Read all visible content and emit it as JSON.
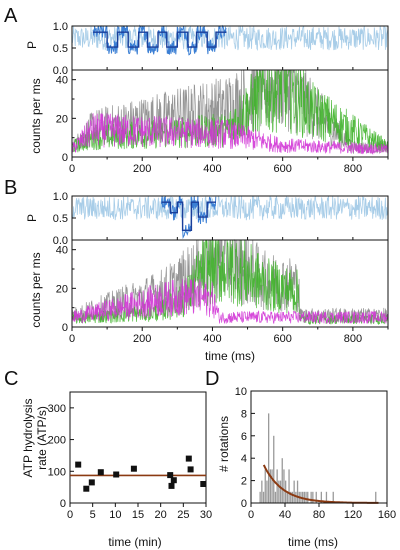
{
  "panels": {
    "A": {
      "letter": "A"
    },
    "B": {
      "letter": "B"
    },
    "C": {
      "letter": "C"
    },
    "D": {
      "letter": "D"
    }
  },
  "colors": {
    "fret_light": "#a8cde8",
    "fret_dark": "#1a3f9a",
    "fret_mid": "#3b7fd4",
    "green": "#3fb22a",
    "magenta": "#d236d6",
    "gray": "#8a8a8a",
    "fit": "#8b3a12",
    "hist": "#9a9a9a"
  },
  "chart_data": [
    {
      "id": "A_top",
      "type": "line",
      "panel": "A",
      "ylabel": "P",
      "xlim": [
        0,
        900
      ],
      "ylim": [
        0,
        1.0
      ],
      "y_ticks": [
        0.0,
        0.5,
        1.0
      ],
      "y_tick_labels": [
        "0.0",
        "0.5",
        "1.0"
      ],
      "series": [
        {
          "role": "raw",
          "x_range": [
            0,
            900
          ],
          "level_range": [
            0.4,
            1.0
          ]
        },
        {
          "role": "burst",
          "x_range": [
            60,
            440
          ]
        },
        {
          "role": "step-fit",
          "levels": [
            [
              60,
              0.86
            ],
            [
              100,
              0.52
            ],
            [
              130,
              0.86
            ],
            [
              160,
              0.52
            ],
            [
              190,
              0.86
            ],
            [
              215,
              0.52
            ],
            [
              245,
              0.86
            ],
            [
              270,
              0.52
            ],
            [
              300,
              0.86
            ],
            [
              330,
              0.52
            ],
            [
              355,
              0.86
            ],
            [
              385,
              0.52
            ],
            [
              410,
              0.86
            ],
            [
              440,
              0.86
            ]
          ]
        }
      ]
    },
    {
      "id": "A_bottom",
      "type": "line",
      "panel": "A",
      "ylabel": "counts per ms",
      "xlim": [
        0,
        900
      ],
      "ylim": [
        0,
        45
      ],
      "y_ticks": [
        0,
        20,
        40
      ],
      "x_ticks": [
        0,
        200,
        400,
        600,
        800
      ],
      "series": [
        {
          "role": "sum",
          "segments": [
            [
              0,
              5
            ],
            [
              60,
              15
            ],
            [
              440,
              26
            ],
            [
              600,
              40
            ],
            [
              700,
              22
            ],
            [
              800,
              5
            ],
            [
              900,
              5
            ]
          ]
        },
        {
          "role": "acceptor",
          "segments": [
            [
              0,
              5
            ],
            [
              60,
              10
            ],
            [
              440,
              14
            ],
            [
              530,
              30
            ],
            [
              600,
              38
            ],
            [
              680,
              24
            ],
            [
              900,
              5
            ]
          ]
        },
        {
          "role": "donor",
          "segments": [
            [
              0,
              4
            ],
            [
              60,
              14
            ],
            [
              440,
              12
            ],
            [
              600,
              6
            ],
            [
              900,
              4
            ]
          ]
        }
      ]
    },
    {
      "id": "B_top",
      "type": "line",
      "panel": "B",
      "ylabel": "P",
      "xlim": [
        0,
        900
      ],
      "ylim": [
        0,
        1.0
      ],
      "y_ticks": [
        0.0,
        0.5,
        1.0
      ],
      "y_tick_labels": [
        "0.0",
        "0.5",
        "1.0"
      ],
      "series": [
        {
          "role": "raw",
          "x_range": [
            0,
            900
          ]
        },
        {
          "role": "burst",
          "x_range": [
            255,
            410
          ]
        },
        {
          "role": "step-fit",
          "levels": [
            [
              255,
              0.86
            ],
            [
              280,
              0.62
            ],
            [
              300,
              0.86
            ],
            [
              315,
              0.22
            ],
            [
              340,
              0.86
            ],
            [
              360,
              0.52
            ],
            [
              385,
              0.86
            ],
            [
              410,
              0.86
            ]
          ]
        }
      ]
    },
    {
      "id": "B_bottom",
      "type": "line",
      "panel": "B",
      "ylabel": "counts per ms",
      "xlabel": "time (ms)",
      "xlim": [
        0,
        900
      ],
      "ylim": [
        0,
        45
      ],
      "y_ticks": [
        0,
        20,
        40
      ],
      "x_ticks": [
        0,
        200,
        400,
        600,
        800
      ],
      "series": [
        {
          "role": "sum",
          "segments": [
            [
              0,
              6
            ],
            [
              250,
              18
            ],
            [
              300,
              22
            ],
            [
              380,
              32
            ],
            [
              450,
              36
            ],
            [
              550,
              24
            ],
            [
              645,
              22
            ],
            [
              650,
              6
            ],
            [
              900,
              6
            ]
          ]
        },
        {
          "role": "acceptor",
          "segments": [
            [
              0,
              4
            ],
            [
              250,
              8
            ],
            [
              320,
              14
            ],
            [
              380,
              30
            ],
            [
              450,
              32
            ],
            [
              550,
              22
            ],
            [
              645,
              18
            ],
            [
              650,
              4
            ],
            [
              900,
              4
            ]
          ]
        },
        {
          "role": "donor",
          "segments": [
            [
              0,
              5
            ],
            [
              250,
              14
            ],
            [
              330,
              16
            ],
            [
              400,
              14
            ],
            [
              420,
              5
            ],
            [
              900,
              5
            ]
          ]
        }
      ]
    },
    {
      "id": "C",
      "type": "scatter",
      "panel": "C",
      "xlabel": "time (min)",
      "ylabel_lines": [
        "ATP hydrolysis",
        "rate (ATP/s)"
      ],
      "xlim": [
        0,
        30
      ],
      "ylim": [
        0,
        350
      ],
      "x_ticks": [
        0,
        5,
        10,
        15,
        20,
        25,
        30
      ],
      "y_ticks": [
        0,
        100,
        200,
        300
      ],
      "points": [
        [
          1.8,
          121
        ],
        [
          3.6,
          45
        ],
        [
          4.8,
          65
        ],
        [
          6.8,
          97
        ],
        [
          10.2,
          90
        ],
        [
          14.1,
          108
        ],
        [
          22.1,
          88
        ],
        [
          22.4,
          54
        ],
        [
          22.9,
          72
        ],
        [
          26.2,
          140
        ],
        [
          26.6,
          106
        ],
        [
          29.4,
          60
        ]
      ],
      "fit": {
        "type": "horizontal",
        "y": 87
      }
    },
    {
      "id": "D",
      "type": "bar",
      "panel": "D",
      "xlabel": "time (ms)",
      "ylabel": "# rotations",
      "xlim": [
        0,
        160
      ],
      "ylim": [
        0,
        10
      ],
      "x_ticks": [
        0,
        40,
        80,
        120,
        160
      ],
      "y_ticks": [
        0,
        2,
        4,
        6,
        8,
        10
      ],
      "bin_width": 2,
      "bins": [
        [
          11,
          1
        ],
        [
          13,
          2
        ],
        [
          15,
          1
        ],
        [
          17,
          3
        ],
        [
          19,
          2
        ],
        [
          21,
          8
        ],
        [
          23,
          3
        ],
        [
          25,
          3
        ],
        [
          27,
          6
        ],
        [
          29,
          1
        ],
        [
          31,
          3
        ],
        [
          33,
          2
        ],
        [
          35,
          2
        ],
        [
          37,
          4
        ],
        [
          39,
          3
        ],
        [
          41,
          2
        ],
        [
          43,
          1
        ],
        [
          45,
          3
        ],
        [
          47,
          1
        ],
        [
          49,
          1
        ],
        [
          51,
          2
        ],
        [
          53,
          1
        ],
        [
          55,
          2
        ],
        [
          57,
          1
        ],
        [
          59,
          1
        ],
        [
          61,
          1
        ],
        [
          63,
          1
        ],
        [
          65,
          1
        ],
        [
          67,
          1
        ],
        [
          71,
          1
        ],
        [
          73,
          1
        ],
        [
          77,
          1
        ],
        [
          83,
          1
        ],
        [
          89,
          1
        ],
        [
          97,
          1
        ],
        [
          147,
          1
        ]
      ],
      "fit": {
        "type": "exponential",
        "amplitude": 3.4,
        "start": 15,
        "tau": 22,
        "x_end": 150
      }
    }
  ]
}
